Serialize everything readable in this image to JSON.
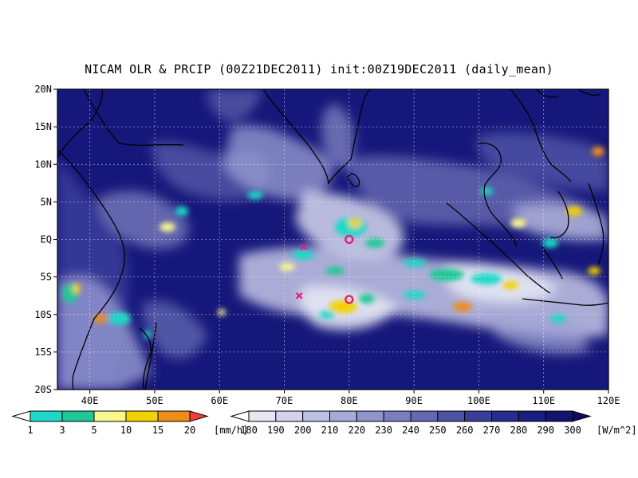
{
  "title": "NICAM OLR & PRCIP (00Z21DEC2011) init:00Z19DEC2011 (daily_mean)",
  "map": {
    "lon_range": [
      35,
      120
    ],
    "lat_range": [
      -20,
      20
    ],
    "lon_ticks": [
      {
        "value": 40,
        "label": "40E"
      },
      {
        "value": 50,
        "label": "50E"
      },
      {
        "value": 60,
        "label": "60E"
      },
      {
        "value": 70,
        "label": "70E"
      },
      {
        "value": 80,
        "label": "80E"
      },
      {
        "value": 90,
        "label": "90E"
      },
      {
        "value": 100,
        "label": "100E"
      },
      {
        "value": 110,
        "label": "110E"
      },
      {
        "value": 120,
        "label": "120E"
      }
    ],
    "lat_ticks": [
      {
        "value": 20,
        "label": "20N"
      },
      {
        "value": 15,
        "label": "15N"
      },
      {
        "value": 10,
        "label": "10N"
      },
      {
        "value": 5,
        "label": "5N"
      },
      {
        "value": 0,
        "label": "EQ"
      },
      {
        "value": -5,
        "label": "5S"
      },
      {
        "value": -10,
        "label": "10S"
      },
      {
        "value": -15,
        "label": "15S"
      },
      {
        "value": -20,
        "label": "20S"
      }
    ],
    "grid": true,
    "markers": [
      {
        "type": "circle",
        "lon": 80,
        "lat": 0,
        "color": "#e0207a"
      },
      {
        "type": "circle",
        "lon": 80,
        "lat": -8,
        "color": "#e0207a"
      },
      {
        "type": "cross",
        "lon": 73,
        "lat": -1,
        "color": "#e0207a"
      },
      {
        "type": "cross",
        "lon": 72.3,
        "lat": -7.5,
        "color": "#e0207a"
      }
    ]
  },
  "colorbars": {
    "precip": {
      "labels": [
        "1",
        "3",
        "5",
        "10",
        "15",
        "20"
      ],
      "unit": "[mm/h]",
      "colors": [
        "#ffffff",
        "#1fd8c8",
        "#20c896",
        "#f8f890",
        "#f2d200",
        "#f08c1a",
        "#f03c3c"
      ]
    },
    "olr": {
      "labels": [
        "180",
        "190",
        "200",
        "210",
        "220",
        "230",
        "240",
        "250",
        "260",
        "270",
        "280",
        "290",
        "300"
      ],
      "unit": "[W/m^2]",
      "colors": [
        "#ffffff",
        "#e6e8f4",
        "#d2d4ec",
        "#bcc0e2",
        "#a6aad8",
        "#9094cc",
        "#7a7ebf",
        "#6468b2",
        "#4e52a5",
        "#3a3e98",
        "#282c8c",
        "#1c1e7e",
        "#12146e",
        "#0c0c5e"
      ]
    }
  }
}
